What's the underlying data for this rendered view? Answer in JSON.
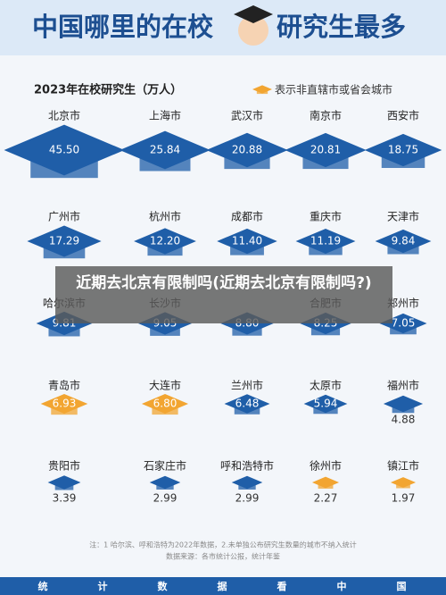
{
  "chart_data": {
    "type": "pictograph",
    "title_parts": [
      "中国哪里的在校",
      "研究生最多"
    ],
    "subtitle": "2023年在校研究生（万人）",
    "legend_label": "表示非直辖市或省会城市",
    "legend_color": "#f2a531",
    "base_color": "#1f5ea8",
    "categories": [
      "北京市",
      "上海市",
      "武汉市",
      "南京市",
      "西安市",
      "广州市",
      "杭州市",
      "成都市",
      "重庆市",
      "天津市",
      "哈尔滨市",
      "长沙市",
      null,
      "合肥市",
      "郑州市",
      "青岛市",
      "大连市",
      "兰州市",
      "太原市",
      "福州市",
      "贵阳市",
      "石家庄市",
      "呼和浩特市",
      "徐州市",
      "镇江市"
    ],
    "values": [
      45.5,
      25.84,
      20.88,
      20.81,
      18.75,
      17.29,
      12.2,
      11.4,
      11.19,
      9.84,
      9.81,
      9.05,
      8.8,
      8.25,
      7.05,
      6.93,
      6.8,
      6.48,
      5.94,
      4.88,
      3.39,
      2.99,
      2.99,
      2.27,
      1.97
    ],
    "value_labels": [
      "45.50",
      "25.84",
      "20.88",
      "20.81",
      "18.75",
      "17.29",
      "12.20",
      "11.40",
      "11.19",
      "9.84",
      "9.81",
      "9.05",
      "8.80",
      "8.25",
      "7.05",
      "6.93",
      "6.80",
      "6.48",
      "5.94",
      "4.88",
      "3.39",
      "2.99",
      "2.99",
      "2.27",
      "1.97"
    ],
    "highlight": [
      false,
      false,
      false,
      false,
      false,
      false,
      false,
      false,
      false,
      false,
      false,
      false,
      false,
      false,
      false,
      true,
      true,
      false,
      false,
      false,
      false,
      false,
      false,
      true,
      true
    ],
    "notes": [
      "注：1 哈尔滨、呼和浩特为2022年数据，2.未单独公布研究生数量的城市不纳入统计",
      "数据来源：各市统计公报，统计年鉴"
    ],
    "footer": [
      "统",
      "计",
      "数",
      "据",
      "看",
      "中",
      "国"
    ]
  },
  "overlay": "近期去北京有限制吗(近期去北京有限制吗?)"
}
